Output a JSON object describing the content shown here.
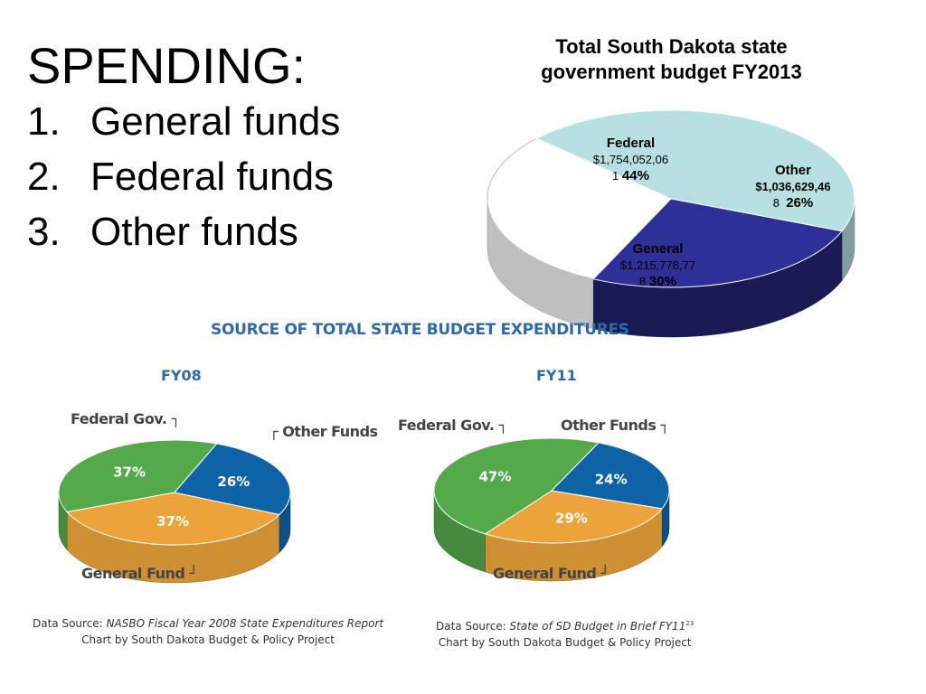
{
  "slide": {
    "heading": "SPENDING:",
    "items": [
      {
        "num": "1.",
        "text": "General funds"
      },
      {
        "num": "2.",
        "text": "Federal funds"
      },
      {
        "num": "3.",
        "text": "Other funds"
      }
    ]
  },
  "sd_chart": {
    "title_line1": "Total South Dakota state",
    "title_line2": "government budget FY2013",
    "federal": {
      "name": "Federal",
      "amount_a": "$1,754,052,06",
      "amount_b": "1",
      "pct": "44%"
    },
    "other": {
      "name": "Other",
      "amount_a": "$1,036,629,46",
      "amount_b": "8",
      "pct": "26%"
    },
    "general": {
      "name": "General",
      "amount_a": "$1,215,778,77",
      "amount_b": "8",
      "pct": "30%"
    }
  },
  "nasbo": {
    "title": "SOURCE OF TOTAL STATE BUDGET EXPENDITURES",
    "fy08": {
      "year": "FY08",
      "federal_label": "Federal Gov.",
      "other_label": "Other Funds",
      "general_label": "General Fund",
      "source_prefix": "Data Source: ",
      "source_title": "NASBO Fiscal Year 2008 State Expenditures Report",
      "credit": "Chart by South Dakota Budget & Policy Project"
    },
    "fy11": {
      "year": "FY11",
      "federal_label": "Federal Gov.",
      "other_label": "Other Funds",
      "general_label": "General Fund",
      "source_prefix": "Data Source: ",
      "source_title": "State of SD Budget in Brief FY11",
      "source_sup": "23",
      "credit": "Chart by South Dakota Budget & Policy Project"
    }
  },
  "colors": {
    "federal_sd": "#b8dfe1",
    "other_sd": "#2f2f98",
    "general_sd": "#ffffff",
    "federal": "#54a94a",
    "other": "#0e63a6",
    "general": "#eba33a"
  },
  "chart_data": [
    {
      "type": "pie",
      "title": "Total South Dakota state government budget FY2013",
      "series": [
        {
          "values": [
            1754052061,
            1036629468,
            1215778778
          ]
        }
      ],
      "categories": [
        "Federal",
        "Other",
        "General"
      ],
      "percentages": [
        44,
        26,
        30
      ]
    },
    {
      "type": "pie",
      "title": "FY08",
      "categories": [
        "Federal Gov.",
        "Other Funds",
        "General Fund"
      ],
      "values": [
        37,
        26,
        37
      ]
    },
    {
      "type": "pie",
      "title": "FY11",
      "categories": [
        "Federal Gov.",
        "Other Funds",
        "General Fund"
      ],
      "values": [
        47,
        24,
        29
      ]
    }
  ]
}
